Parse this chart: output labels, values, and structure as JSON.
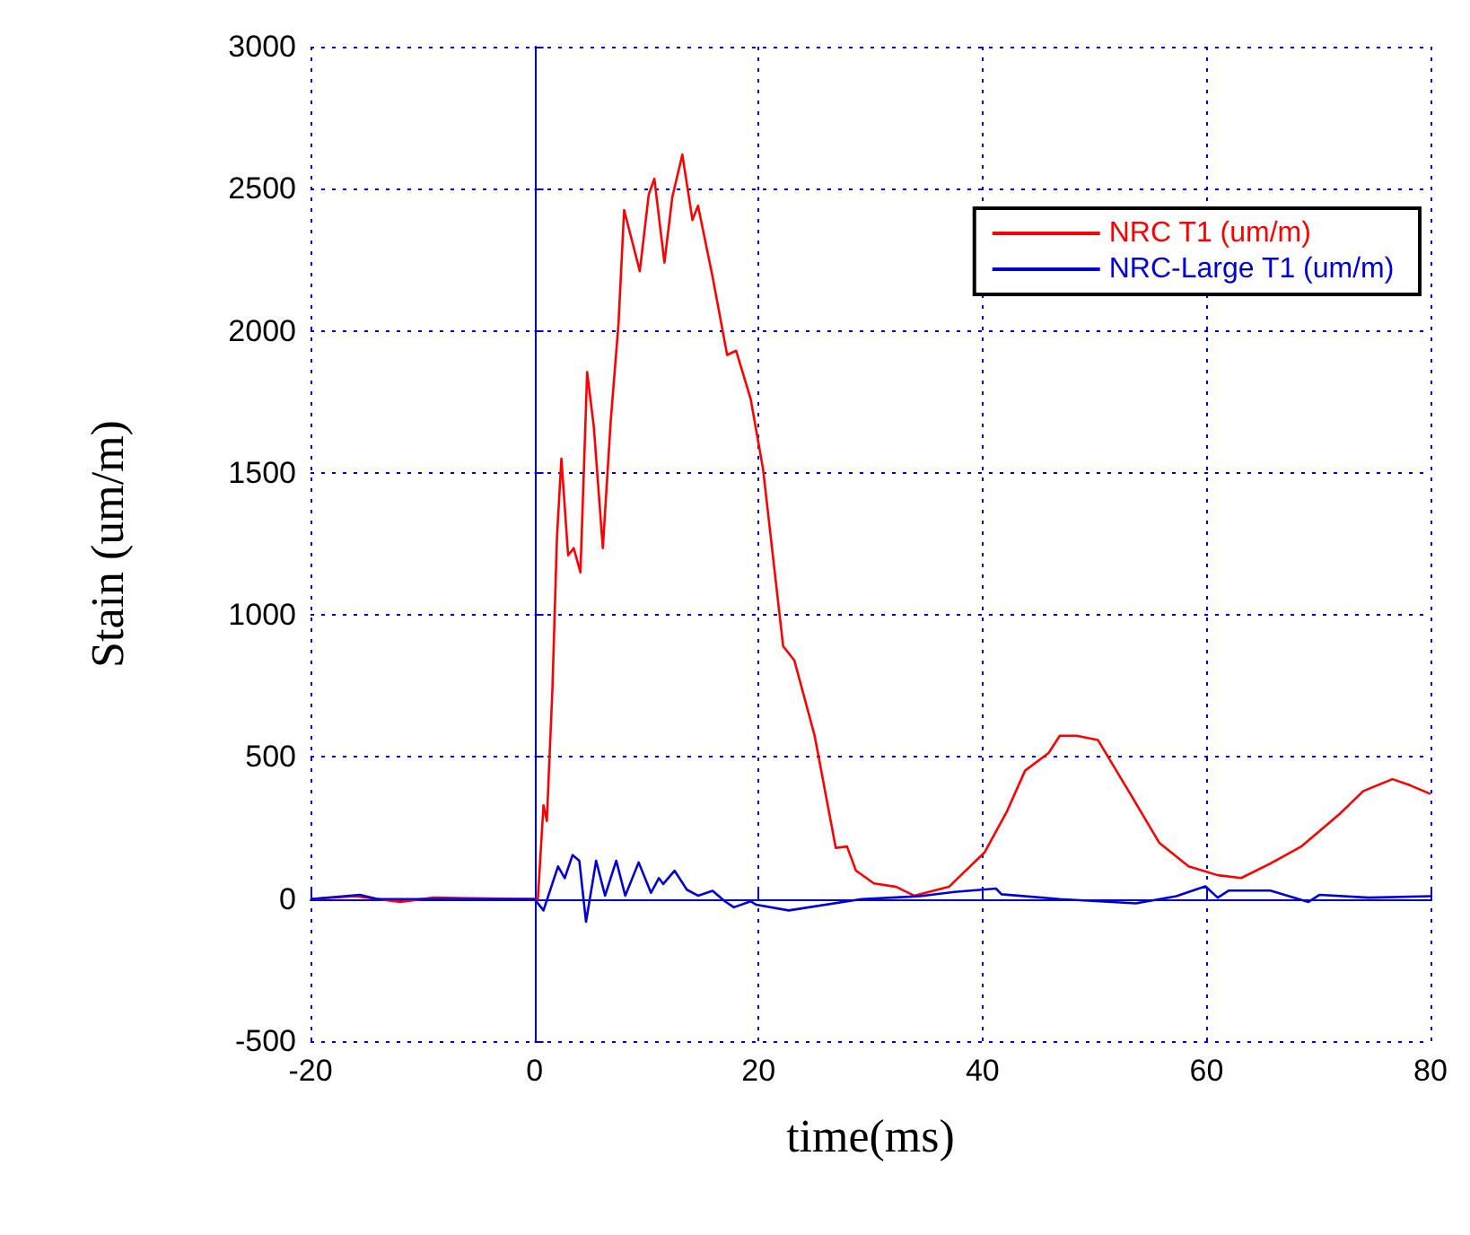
{
  "chart_data": {
    "type": "line",
    "xlabel": "time(ms)",
    "ylabel": "Stain (um/m)",
    "xlim": [
      -20,
      80
    ],
    "xticks": [
      -20,
      0,
      20,
      40,
      60,
      80
    ],
    "ylim": [
      -500,
      3000
    ],
    "yticks": [
      -500,
      0,
      500,
      1000,
      1500,
      2000,
      2500,
      3000
    ],
    "grid": true,
    "legend": "top right",
    "marker": "none",
    "line_style": "solid",
    "series": [
      {
        "name": "NRC T1 (um/m)",
        "color": "#ff0000",
        "x": [
          -20,
          -16,
          -12,
          -9,
          0,
          0.3,
          0.8,
          1.1,
          1.6,
          2.0,
          2.4,
          3.0,
          3.5,
          4.1,
          4.7,
          5.3,
          6.1,
          6.8,
          7.5,
          8.0,
          9.4,
          10.2,
          10.7,
          11.6,
          12.3,
          13.2,
          14.1,
          14.6,
          15.9,
          17.2,
          18.0,
          19.3,
          20.4,
          22.2,
          23.2,
          25.0,
          26.9,
          27.9,
          28.7,
          30.3,
          32.3,
          33.9,
          37.0,
          40.2,
          42.2,
          43.8,
          45.9,
          46.9,
          48.4,
          50.3,
          53.2,
          55.8,
          58.4,
          61.0,
          63.1,
          65.7,
          68.5,
          71.9,
          74.0,
          76.6,
          78.2,
          80
        ],
        "values": [
          0,
          10,
          -10,
          5,
          0,
          0,
          330,
          275,
          740,
          1270,
          1550,
          1210,
          1235,
          1150,
          1855,
          1660,
          1235,
          1680,
          2025,
          2425,
          2210,
          2480,
          2535,
          2240,
          2470,
          2620,
          2390,
          2440,
          2190,
          1915,
          1930,
          1760,
          1515,
          890,
          840,
          577,
          180,
          185,
          100,
          55,
          43,
          12,
          43,
          165,
          310,
          452,
          514,
          575,
          575,
          560,
          370,
          197,
          115,
          84,
          74,
          125,
          186,
          300,
          380,
          422,
          400,
          370
        ]
      },
      {
        "name": "NRC-Large T1 (um/m)",
        "color": "#0000dd",
        "x": [
          -20,
          -15.6,
          -14,
          0,
          0.8,
          2.1,
          2.7,
          3.4,
          4.0,
          4.6,
          5.5,
          6.3,
          7.3,
          8.1,
          9.3,
          10.4,
          11.1,
          11.5,
          12.5,
          13.6,
          14.6,
          15.9,
          17.0,
          17.8,
          19.3,
          19.8,
          22.7,
          29.2,
          34.4,
          37.5,
          41.2,
          41.7,
          46.9,
          53.7,
          57.3,
          59.9,
          61.0,
          62.0,
          65.7,
          69.1,
          70.1,
          74.5,
          80
        ],
        "values": [
          0,
          15,
          0,
          0,
          -40,
          115,
          74,
          155,
          135,
          -80,
          135,
          12,
          135,
          12,
          129,
          22,
          74,
          53,
          100,
          33,
          12,
          29,
          -8,
          -29,
          -8,
          -20,
          -40,
          0,
          10,
          25,
          37,
          17,
          0,
          -15,
          10,
          45,
          5,
          30,
          30,
          -10,
          15,
          5,
          10
        ]
      }
    ]
  }
}
